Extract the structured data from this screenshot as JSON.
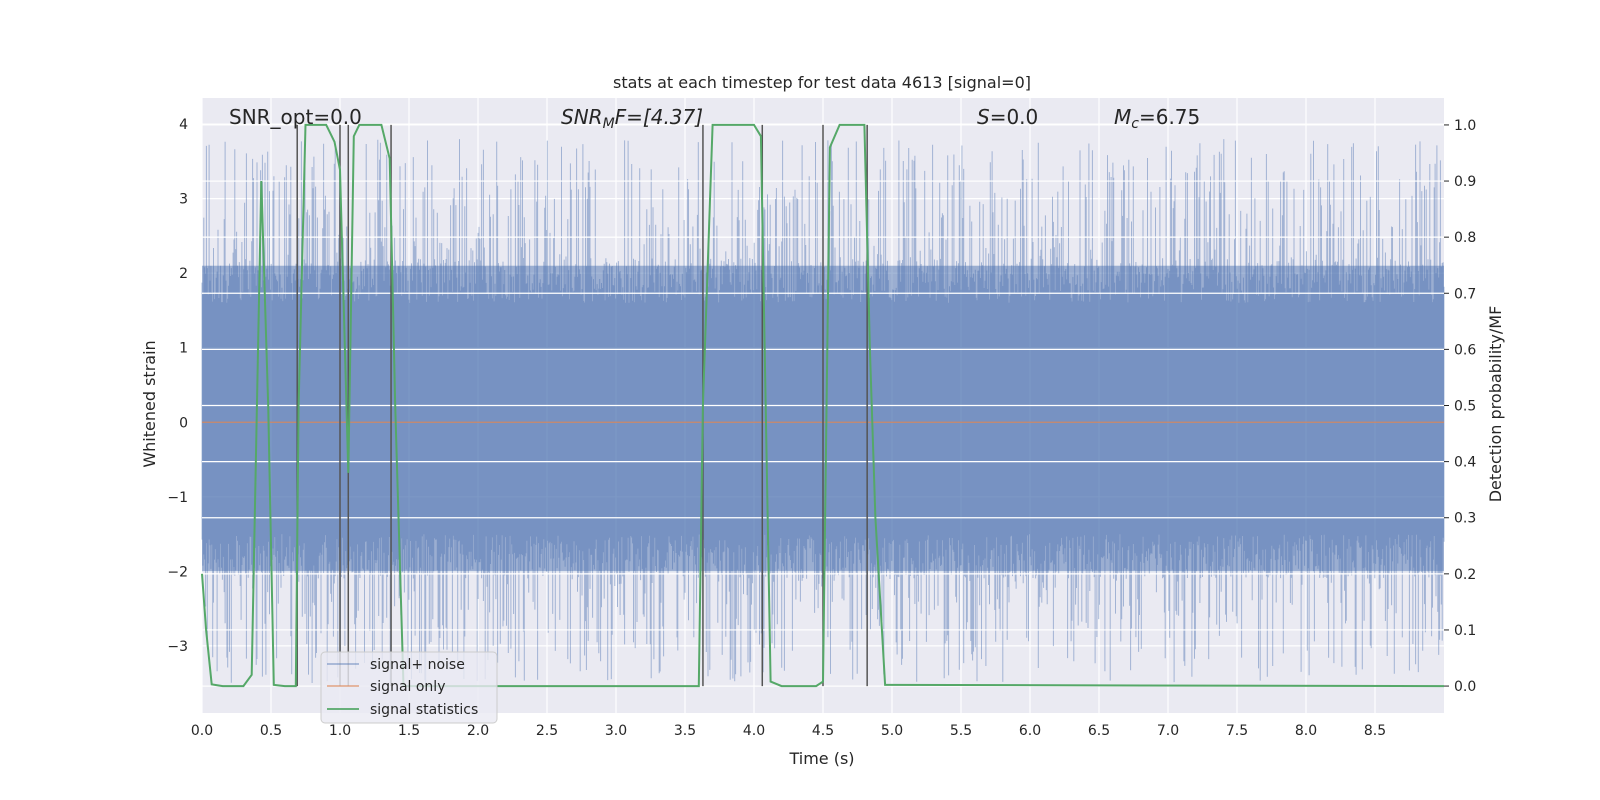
{
  "chart_data": {
    "type": "line",
    "title": "stats at each timestep for test data 4613 [signal=0]",
    "xlabel": "Time (s)",
    "ylabel": "Whitened strain",
    "ylabel_right": "Detection probability/MF",
    "xlim": [
      0,
      9.0
    ],
    "ylim": [
      -3.9,
      4.35
    ],
    "ylim_right": [
      -0.048,
      1.048
    ],
    "x_ticks": [
      "0.0",
      "0.5",
      "1.0",
      "1.5",
      "2.0",
      "2.5",
      "3.0",
      "3.5",
      "4.0",
      "4.5",
      "5.0",
      "5.5",
      "6.0",
      "6.5",
      "7.0",
      "7.5",
      "8.0",
      "8.5"
    ],
    "y_ticks": [
      "−3",
      "−2",
      "−1",
      "0",
      "1",
      "2",
      "3",
      "4"
    ],
    "y_right_ticks": [
      "0.0",
      "0.1",
      "0.2",
      "0.3",
      "0.4",
      "0.5",
      "0.6",
      "0.7",
      "0.8",
      "0.9",
      "1.0"
    ],
    "grid": true,
    "legend_position": "lower-left",
    "colors": {
      "noise": "#4c72b0",
      "signal": "#dd8452",
      "stats": "#55a868",
      "trigger": "#555555",
      "background": "#eaeaf2",
      "grid": "#ffffff"
    },
    "annotations": [
      {
        "name": "snr-opt",
        "text": "SNR_opt=0.0"
      },
      {
        "name": "snr-mf",
        "prefix": "SNR",
        "sub": "M",
        "suffix": "F=[4.37]"
      },
      {
        "name": "s-value",
        "prefix": "S",
        "suffix": "=0.0"
      },
      {
        "name": "mc-value",
        "prefix": "M",
        "sub": "c",
        "suffix": "=6.75"
      }
    ],
    "series": [
      {
        "name": "signal+ noise",
        "kind": "noise",
        "envelope": [
          -2.0,
          2.1
        ],
        "peak_range": [
          -3.5,
          3.8
        ]
      },
      {
        "name": "signal only",
        "kind": "flat",
        "value": 0.0
      },
      {
        "name": "signal statistics",
        "kind": "line",
        "axis": "right",
        "x": [
          0.0,
          0.03,
          0.07,
          0.15,
          0.3,
          0.36,
          0.43,
          0.48,
          0.52,
          0.6,
          0.68,
          0.7,
          0.75,
          0.9,
          0.96,
          1.0,
          1.06,
          1.1,
          1.14,
          1.3,
          1.36,
          1.4,
          1.46,
          3.6,
          3.63,
          3.7,
          4.0,
          4.05,
          4.12,
          4.2,
          4.45,
          4.5,
          4.55,
          4.62,
          4.8,
          4.84,
          4.88,
          4.95,
          9.0
        ],
        "y": [
          0.2,
          0.1,
          0.003,
          0.0,
          0.0,
          0.02,
          0.9,
          0.5,
          0.002,
          0.0,
          0.0,
          0.5,
          1.0,
          1.0,
          0.97,
          0.92,
          0.38,
          0.98,
          1.0,
          1.0,
          0.94,
          0.5,
          0.0,
          0.0,
          0.5,
          1.0,
          1.0,
          0.98,
          0.008,
          0.0,
          0.0,
          0.008,
          0.96,
          1.0,
          1.0,
          0.6,
          0.3,
          0.002,
          0.0
        ]
      }
    ],
    "trigger_markers": [
      0.69,
      1.0,
      1.06,
      1.37,
      3.63,
      4.06,
      4.5,
      4.82
    ]
  }
}
